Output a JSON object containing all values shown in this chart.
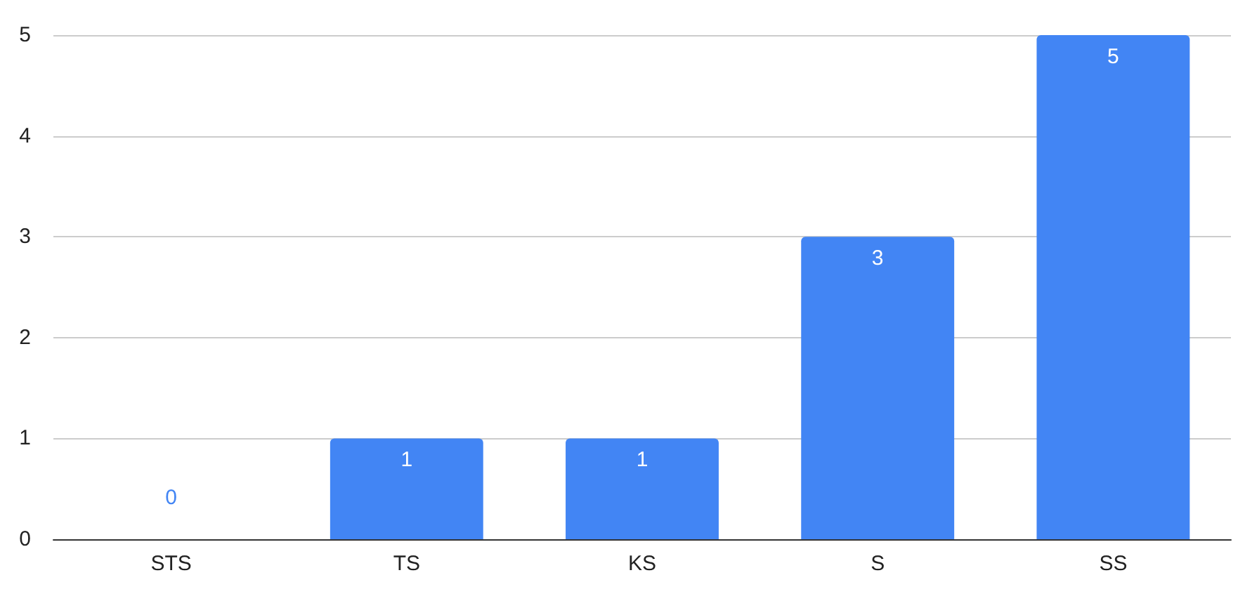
{
  "chart_data": {
    "type": "bar",
    "categories": [
      "STS",
      "TS",
      "KS",
      "S",
      "SS"
    ],
    "values": [
      0,
      1,
      1,
      3,
      5
    ],
    "color": "#4285f4",
    "ylim": [
      0,
      5
    ],
    "yticks": [
      0,
      1,
      2,
      3,
      4,
      5
    ],
    "grid": "y",
    "data_labels": true
  }
}
